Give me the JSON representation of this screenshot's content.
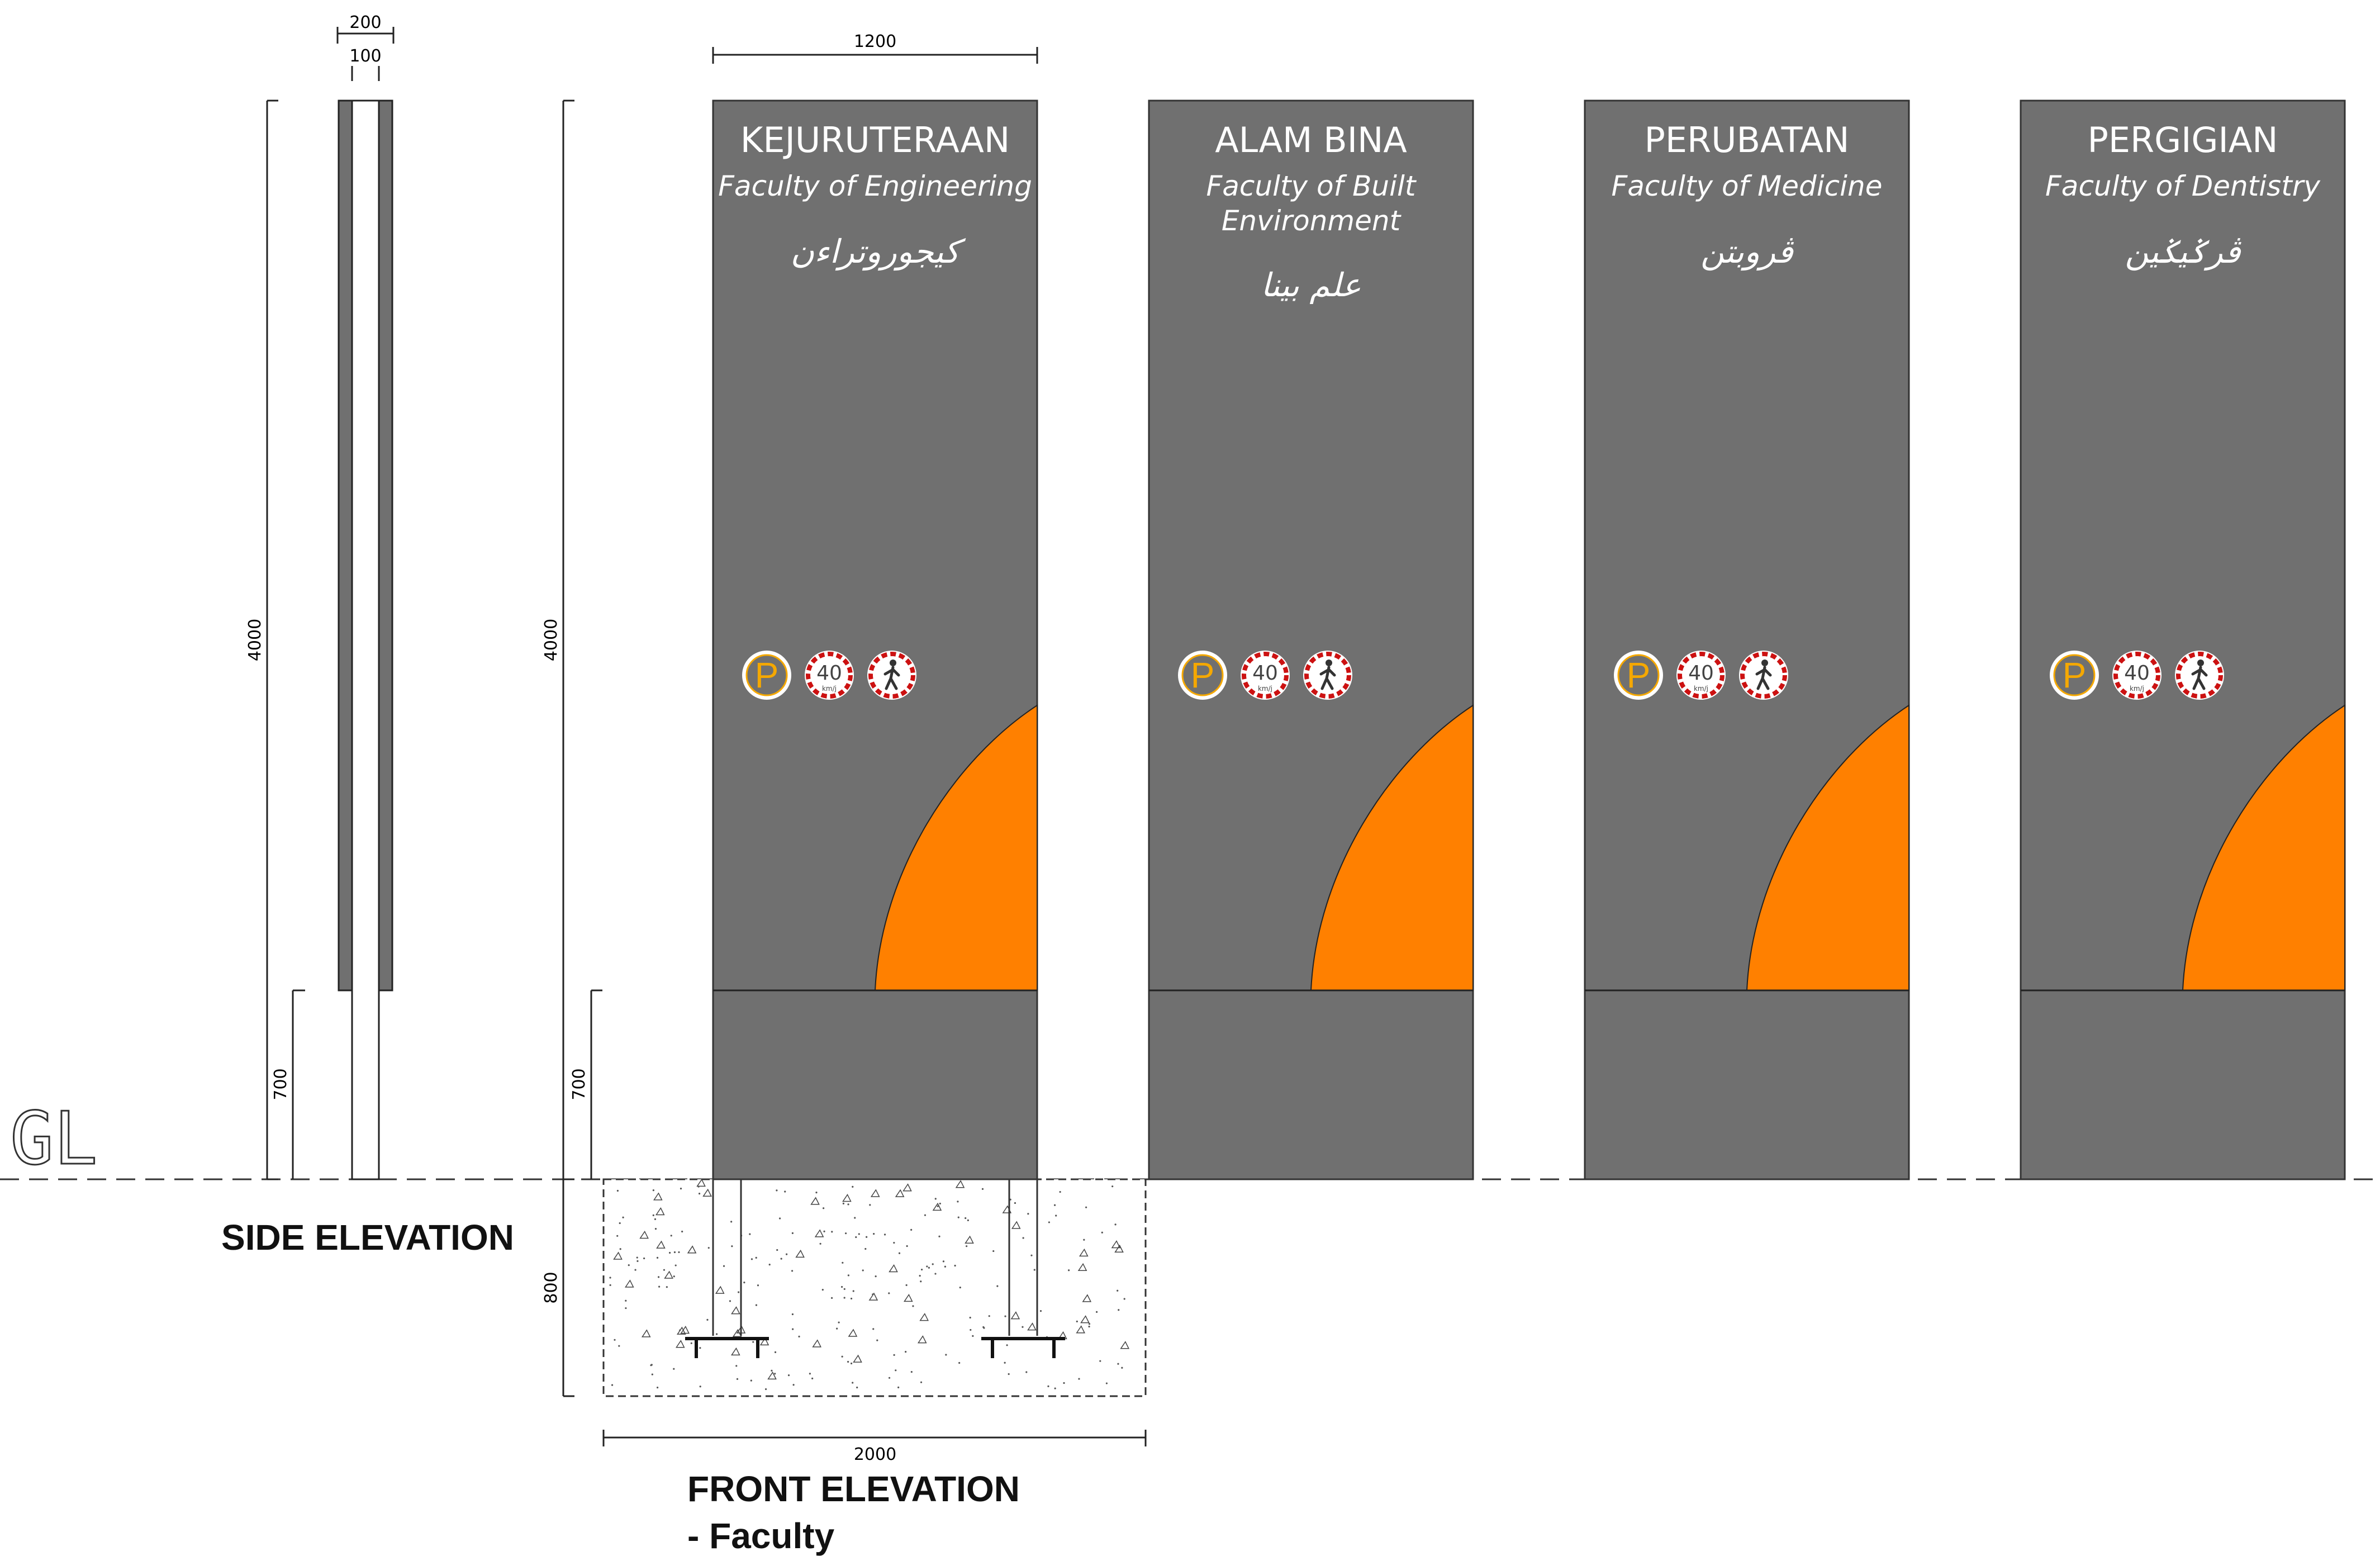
{
  "side": {
    "dim_total_width": "200",
    "dim_post_width": "100",
    "dim_height": "4000",
    "dim_clearance": "700",
    "label": "SIDE ELEVATION",
    "gl_label": "GL"
  },
  "front": {
    "dim_sign_width": "1200",
    "dim_height": "4000",
    "dim_clearance": "700",
    "dim_footing_depth": "800",
    "dim_footing_width": "2000",
    "label_line1": "FRONT ELEVATION",
    "label_line2": "- Faculty"
  },
  "signs": [
    {
      "title": "KEJURUTERAAN",
      "subtitle": [
        "Faculty of Engineering"
      ],
      "jawi": "كيجوروتراءن"
    },
    {
      "title": "ALAM BINA",
      "subtitle": [
        "Faculty of Built",
        "Environment"
      ],
      "jawi": "علم بينا"
    },
    {
      "title": "PERUBATAN",
      "subtitle": [
        "Faculty of Medicine"
      ],
      "jawi": "ڤروبتن"
    },
    {
      "title": "PERGIGIAN",
      "subtitle": [
        "Faculty of Dentistry"
      ],
      "jawi": "ڤرݢيݢين"
    }
  ],
  "icons": {
    "parking_letter": "P",
    "speed_limit": "40",
    "speed_unit": "km/j"
  },
  "colors": {
    "sign_panel": "#707070",
    "accent_orange": "#FF8000",
    "parking_yellow": "#F5A800",
    "speed_red": "#CC1111"
  }
}
